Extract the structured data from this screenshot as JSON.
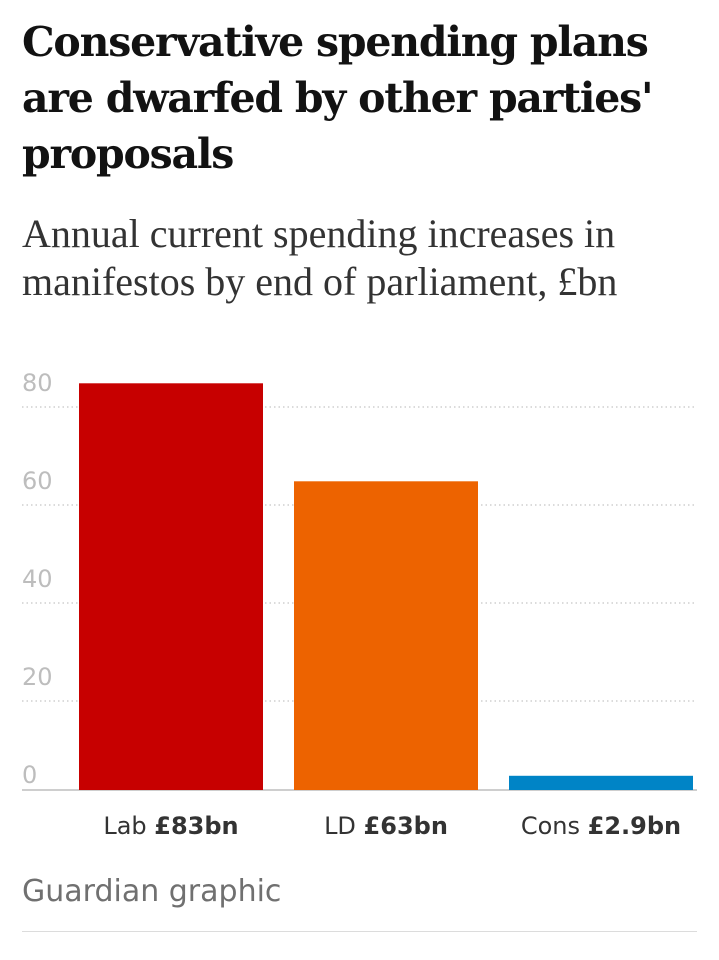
{
  "title": "Conservative spending plans are dwarfed by other parties' proposals",
  "subtitle": "Annual current spending increases in manifestos by end of parliament, £bn",
  "source": "Guardian graphic",
  "chart_data": {
    "type": "bar",
    "categories": [
      "Lab",
      "LD",
      "Cons"
    ],
    "values": [
      83,
      63,
      2.9
    ],
    "value_labels": [
      "£83bn",
      "£63bn",
      "£2.9bn"
    ],
    "colors": [
      "#c70000",
      "#ed6300",
      "#0084c6"
    ],
    "yticks": [
      0,
      20,
      40,
      60,
      80
    ],
    "ylim": [
      0,
      83
    ],
    "grid": true,
    "xlabel": "",
    "ylabel": ""
  }
}
